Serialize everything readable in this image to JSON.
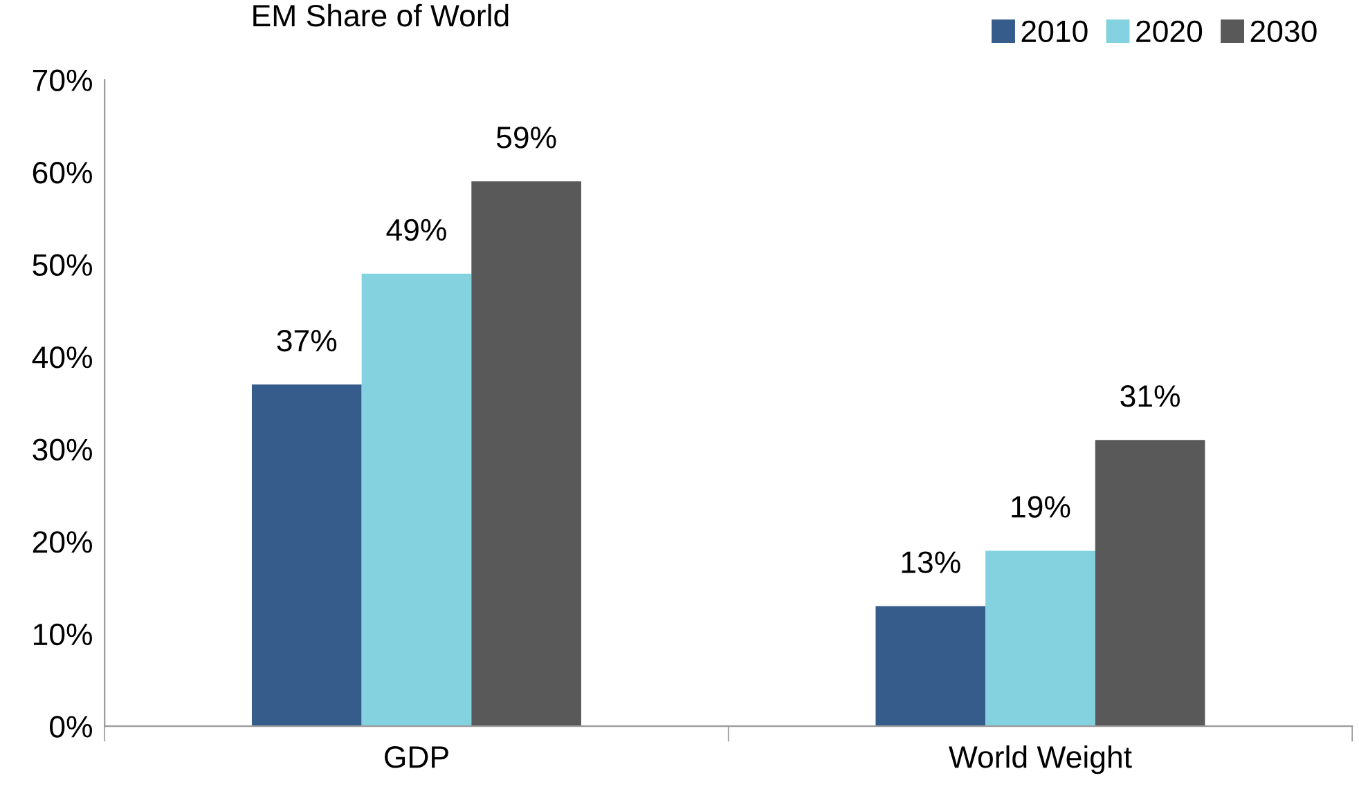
{
  "chart_data": {
    "type": "bar",
    "title": "EM Share of World",
    "categories": [
      "GDP",
      "World Weight"
    ],
    "series": [
      {
        "name": "2010",
        "color": "#355c8a",
        "values": [
          37,
          13
        ],
        "value_labels": [
          "37%",
          "13%"
        ]
      },
      {
        "name": "2020",
        "color": "#84d2e0",
        "values": [
          49,
          19
        ],
        "value_labels": [
          "49%",
          "19%"
        ]
      },
      {
        "name": "2030",
        "color": "#595959",
        "values": [
          59,
          31
        ],
        "value_labels": [
          "59%",
          "31%"
        ]
      }
    ],
    "ylim": [
      0,
      70
    ],
    "yticks": [
      {
        "value": 0,
        "label": "0%"
      },
      {
        "value": 10,
        "label": "10%"
      },
      {
        "value": 20,
        "label": "20%"
      },
      {
        "value": 30,
        "label": "30%"
      },
      {
        "value": 40,
        "label": "40%"
      },
      {
        "value": 50,
        "label": "50%"
      },
      {
        "value": 60,
        "label": "60%"
      },
      {
        "value": 70,
        "label": "70%"
      }
    ],
    "grid": false,
    "legend": "top right"
  }
}
